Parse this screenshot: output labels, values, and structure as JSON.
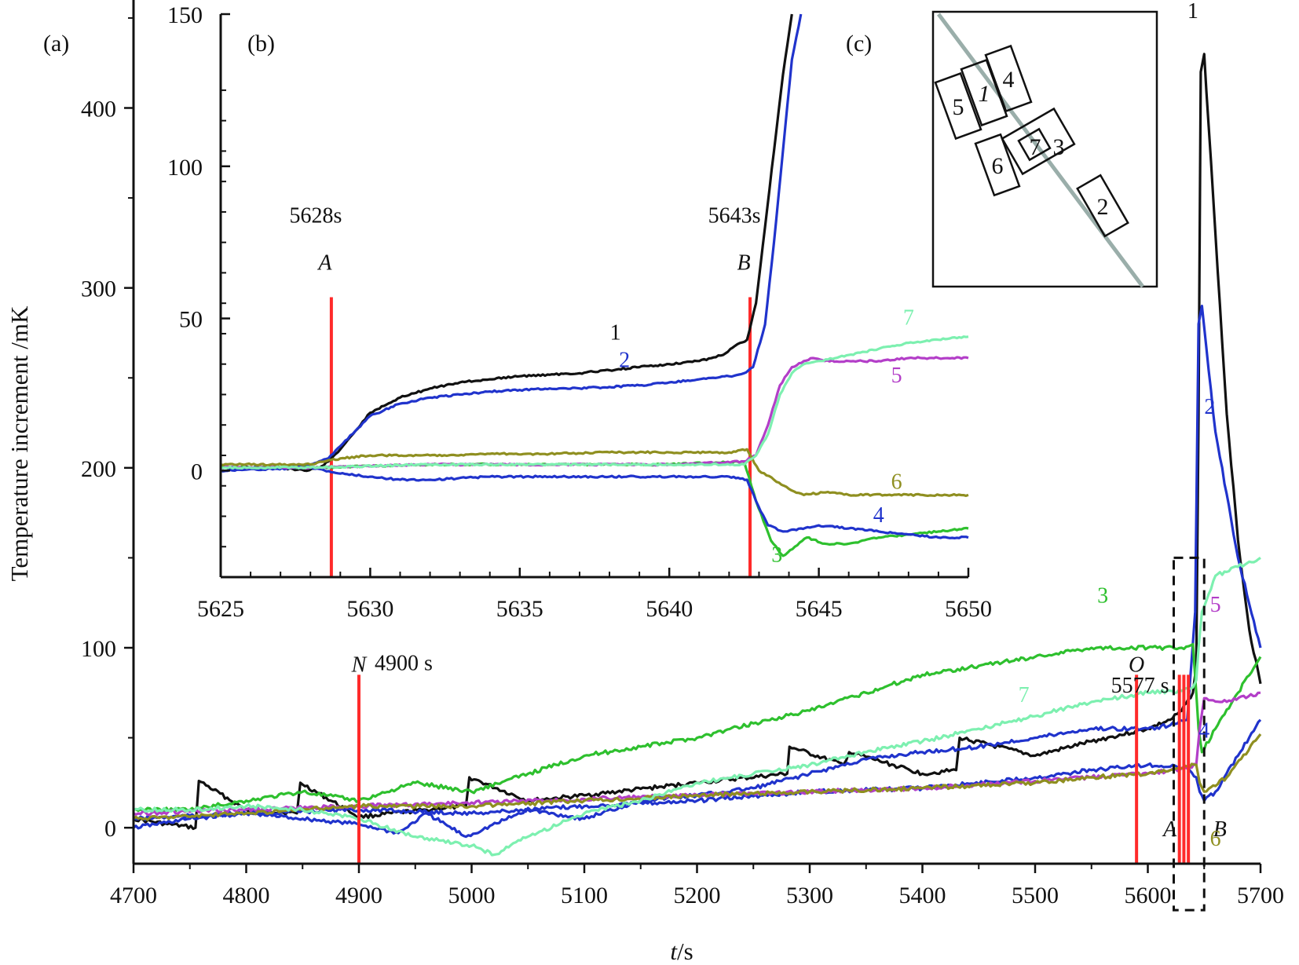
{
  "chart_data": [
    {
      "id": "main",
      "type": "line",
      "panel_label": "(a)",
      "xlabel_italic": "t",
      "xlabel_unit": "/s",
      "ylabel": "Temperature increment /mK",
      "xlim": [
        4700,
        5700
      ],
      "ylim": [
        -20,
        460
      ],
      "xticks": [
        4700,
        4800,
        4900,
        5000,
        5100,
        5200,
        5300,
        5400,
        5500,
        5600,
        5700
      ],
      "yticks": [
        0,
        100,
        200,
        300,
        400
      ],
      "series": [
        {
          "name": "1",
          "color": "#111111",
          "label_at": [
            5640,
            450
          ],
          "x": [
            4700,
            4730,
            4755,
            4758,
            4800,
            4845,
            4848,
            4900,
            4960,
            4995,
            4998,
            5050,
            5100,
            5200,
            5280,
            5282,
            5330,
            5335,
            5400,
            5430,
            5433,
            5500,
            5550,
            5600,
            5620,
            5630,
            5640,
            5643,
            5645,
            5647,
            5650,
            5660,
            5670,
            5680,
            5690,
            5700
          ],
          "values": [
            5,
            2,
            0,
            26,
            10,
            8,
            25,
            6,
            10,
            12,
            28,
            15,
            18,
            25,
            30,
            45,
            35,
            42,
            30,
            32,
            50,
            40,
            48,
            55,
            60,
            65,
            75,
            90,
            230,
            420,
            430,
            330,
            230,
            160,
            110,
            80
          ]
        },
        {
          "name": "2",
          "color": "#2033cc",
          "label_at": [
            5655,
            230
          ],
          "x": [
            4700,
            4750,
            4800,
            4850,
            4900,
            4935,
            4960,
            4995,
            5050,
            5100,
            5150,
            5200,
            5250,
            5300,
            5350,
            5400,
            5450,
            5500,
            5550,
            5600,
            5620,
            5635,
            5642,
            5645,
            5648,
            5660,
            5680,
            5700
          ],
          "values": [
            0,
            5,
            8,
            5,
            2,
            -3,
            8,
            -5,
            10,
            5,
            15,
            18,
            22,
            30,
            38,
            42,
            45,
            50,
            55,
            55,
            57,
            60,
            120,
            280,
            290,
            220,
            150,
            100
          ]
        },
        {
          "name": "3",
          "color": "#2ec02e",
          "label_at": [
            5560,
            125
          ],
          "x": [
            4700,
            4750,
            4800,
            4850,
            4900,
            4950,
            5000,
            5050,
            5100,
            5150,
            5200,
            5250,
            5300,
            5350,
            5400,
            5450,
            5500,
            5550,
            5600,
            5630,
            5640,
            5643,
            5645,
            5648,
            5660,
            5680,
            5700
          ],
          "values": [
            10,
            10,
            15,
            20,
            15,
            25,
            20,
            30,
            40,
            45,
            50,
            58,
            65,
            75,
            85,
            90,
            95,
            100,
            100,
            100,
            102,
            75,
            55,
            42,
            55,
            75,
            95
          ]
        },
        {
          "name": "4",
          "color": "#2033cc",
          "label_at": [
            5650,
            50
          ],
          "x": [
            4700,
            4800,
            4900,
            5000,
            5100,
            5200,
            5300,
            5400,
            5500,
            5550,
            5600,
            5620,
            5635,
            5643,
            5646,
            5650,
            5660,
            5680,
            5700
          ],
          "values": [
            5,
            8,
            10,
            8,
            12,
            15,
            20,
            22,
            28,
            32,
            35,
            34,
            33,
            28,
            20,
            15,
            20,
            40,
            60
          ]
        },
        {
          "name": "5",
          "color": "#b33ec8",
          "label_at": [
            5660,
            120
          ],
          "x": [
            4700,
            4800,
            4900,
            5000,
            5100,
            5200,
            5300,
            5400,
            5500,
            5550,
            5600,
            5620,
            5635,
            5643,
            5646,
            5650,
            5670,
            5700
          ],
          "values": [
            8,
            10,
            12,
            14,
            16,
            18,
            20,
            22,
            26,
            28,
            30,
            32,
            33,
            35,
            55,
            72,
            70,
            75
          ]
        },
        {
          "name": "6",
          "color": "#8f8f20",
          "label_at": [
            5660,
            -10
          ],
          "x": [
            4700,
            4800,
            4900,
            5000,
            5100,
            5200,
            5300,
            5400,
            5500,
            5550,
            5600,
            5620,
            5635,
            5643,
            5646,
            5650,
            5670,
            5700
          ],
          "values": [
            5,
            8,
            12,
            12,
            15,
            18,
            20,
            22,
            25,
            28,
            30,
            32,
            34,
            35,
            25,
            20,
            28,
            52
          ]
        },
        {
          "name": "7",
          "color": "#7df0b0",
          "label_at": [
            5490,
            70
          ],
          "x": [
            4700,
            4750,
            4800,
            4850,
            4900,
            4950,
            5000,
            5020,
            5050,
            5100,
            5150,
            5200,
            5250,
            5300,
            5350,
            5400,
            5450,
            5500,
            5550,
            5600,
            5630,
            5640,
            5643,
            5645,
            5648,
            5660,
            5680,
            5700
          ],
          "values": [
            10,
            10,
            12,
            10,
            5,
            -5,
            -10,
            -15,
            -5,
            8,
            15,
            25,
            30,
            35,
            42,
            48,
            55,
            62,
            70,
            75,
            76,
            78,
            82,
            100,
            120,
            140,
            145,
            150
          ]
        }
      ],
      "markers": [
        {
          "x": 4900,
          "letter": "N",
          "text": "4900 s"
        },
        {
          "x": 5590,
          "letter": "O",
          "text": ""
        },
        {
          "x": 5628,
          "letter": "A",
          "text": ""
        },
        {
          "x": 5632,
          "letter": "",
          "text": ""
        },
        {
          "x": 5636,
          "letter": "",
          "text": ""
        }
      ],
      "window_label": "5577 s",
      "window_b_label": "B",
      "window_range": {
        "x": [
          5623,
          5650
        ],
        "y": [
          0,
          150
        ]
      }
    },
    {
      "id": "inset_b",
      "type": "line",
      "panel_label": "(b)",
      "xlim": [
        5625,
        5650
      ],
      "ylim": [
        -35,
        150
      ],
      "xticks": [
        5625,
        5630,
        5635,
        5640,
        5645,
        5650
      ],
      "yticks": [
        0,
        50,
        100,
        150
      ],
      "series": [
        {
          "name": "1",
          "color": "#111111",
          "label_at": [
            5638.2,
            43
          ],
          "x": [
            5625,
            5626,
            5627,
            5627.8,
            5628.3,
            5628.6,
            5629,
            5629.5,
            5630,
            5631,
            5632,
            5633,
            5634,
            5635,
            5636,
            5637,
            5638,
            5639,
            5640,
            5641,
            5641.8,
            5642.2,
            5642.6,
            5642.9,
            5643.2,
            5643.5,
            5643.8,
            5644.1
          ],
          "values": [
            1,
            1,
            1,
            0,
            1,
            3,
            7,
            13,
            19,
            24,
            27,
            29,
            30,
            31,
            31.5,
            32,
            33,
            34,
            35,
            36,
            38,
            41,
            43,
            55,
            80,
            105,
            130,
            150
          ]
        },
        {
          "name": "2",
          "color": "#2033cc",
          "label_at": [
            5638.5,
            34
          ],
          "x": [
            5625,
            5626,
            5627,
            5628,
            5628.6,
            5629,
            5629.5,
            5630,
            5631,
            5632,
            5633,
            5634,
            5635,
            5636,
            5637,
            5638,
            5639,
            5640,
            5641,
            5642,
            5642.5,
            5642.8,
            5643.2,
            5643.5,
            5643.8,
            5644.1,
            5644.4
          ],
          "values": [
            1,
            1,
            1,
            2,
            4,
            8,
            13,
            18,
            22,
            24,
            25,
            26,
            26.5,
            27,
            27,
            27.5,
            28,
            29,
            30,
            31,
            32,
            34,
            48,
            75,
            105,
            135,
            150
          ]
        },
        {
          "name": "3",
          "color": "#2ec02e",
          "label_at": [
            5643.6,
            -30
          ],
          "x": [
            5625,
            5628,
            5632,
            5636,
            5640,
            5642.5,
            5642.9,
            5643.4,
            5643.8,
            5644.2,
            5644.6,
            5645.2,
            5646,
            5647,
            5648,
            5649,
            5650
          ],
          "values": [
            1,
            1,
            2,
            2,
            2,
            3,
            -10,
            -23,
            -28,
            -25,
            -22,
            -24,
            -24,
            -22,
            -21,
            -20,
            -19
          ]
        },
        {
          "name": "4",
          "color": "#2033cc",
          "label_at": [
            5647,
            -17
          ],
          "x": [
            5625,
            5628,
            5629,
            5630,
            5631,
            5632,
            5634,
            5636,
            5638,
            5640,
            5642,
            5642.6,
            5642.9,
            5643.3,
            5643.8,
            5644.4,
            5645,
            5646,
            5647,
            5648,
            5649,
            5650
          ],
          "values": [
            0,
            1,
            -1,
            -2,
            -3,
            -3,
            -2,
            -2,
            -2,
            -2,
            -2,
            -3,
            -10,
            -18,
            -20,
            -19,
            -18,
            -19,
            -20,
            -21,
            -22,
            -22
          ]
        },
        {
          "name": "5",
          "color": "#b33ec8",
          "label_at": [
            5647.6,
            29
          ],
          "x": [
            5625,
            5628,
            5632,
            5636,
            5640,
            5642.5,
            5642.9,
            5643.3,
            5643.7,
            5644.1,
            5644.5,
            5644.8,
            5645.2,
            5646,
            5647,
            5648,
            5649,
            5650
          ],
          "values": [
            1,
            1,
            2,
            2,
            2,
            3,
            5,
            15,
            28,
            34,
            36,
            37,
            36,
            36,
            36,
            37,
            37,
            37
          ]
        },
        {
          "name": "6",
          "color": "#8f8f20",
          "label_at": [
            5647.6,
            -6
          ],
          "x": [
            5625,
            5628,
            5629,
            5630,
            5632,
            5634,
            5636,
            5638,
            5640,
            5642,
            5642.6,
            5643,
            5643.5,
            5644,
            5644.5,
            5645.3,
            5646,
            5648,
            5650
          ],
          "values": [
            2,
            2,
            4,
            5,
            5,
            5.5,
            5.5,
            6,
            6,
            6,
            7,
            0,
            -3,
            -6,
            -8,
            -7,
            -8,
            -8,
            -8
          ]
        },
        {
          "name": "7",
          "color": "#7df0b0",
          "label_at": [
            5648,
            48
          ],
          "x": [
            5625,
            5628,
            5632,
            5636,
            5640,
            5642.5,
            5642.9,
            5643.3,
            5643.7,
            5644.1,
            5644.5,
            5645,
            5646,
            5647,
            5648,
            5649,
            5650
          ],
          "values": [
            1,
            1,
            2,
            2,
            2,
            2,
            5,
            12,
            25,
            32,
            35,
            36,
            38,
            40,
            42,
            43,
            44
          ]
        }
      ],
      "markers": [
        {
          "x": 5628.7,
          "letter": "A",
          "text": "5628s"
        },
        {
          "x": 5642.7,
          "letter": "B",
          "text": "5643s"
        }
      ]
    }
  ],
  "inset_c": {
    "panel_label": "(c)",
    "probes": [
      "5",
      "1",
      "4",
      "7",
      "3",
      "6",
      "2"
    ]
  },
  "colors": {
    "marker": "#ff2a2a",
    "probe_line": "#9aaeaa",
    "frame": "#111111"
  }
}
